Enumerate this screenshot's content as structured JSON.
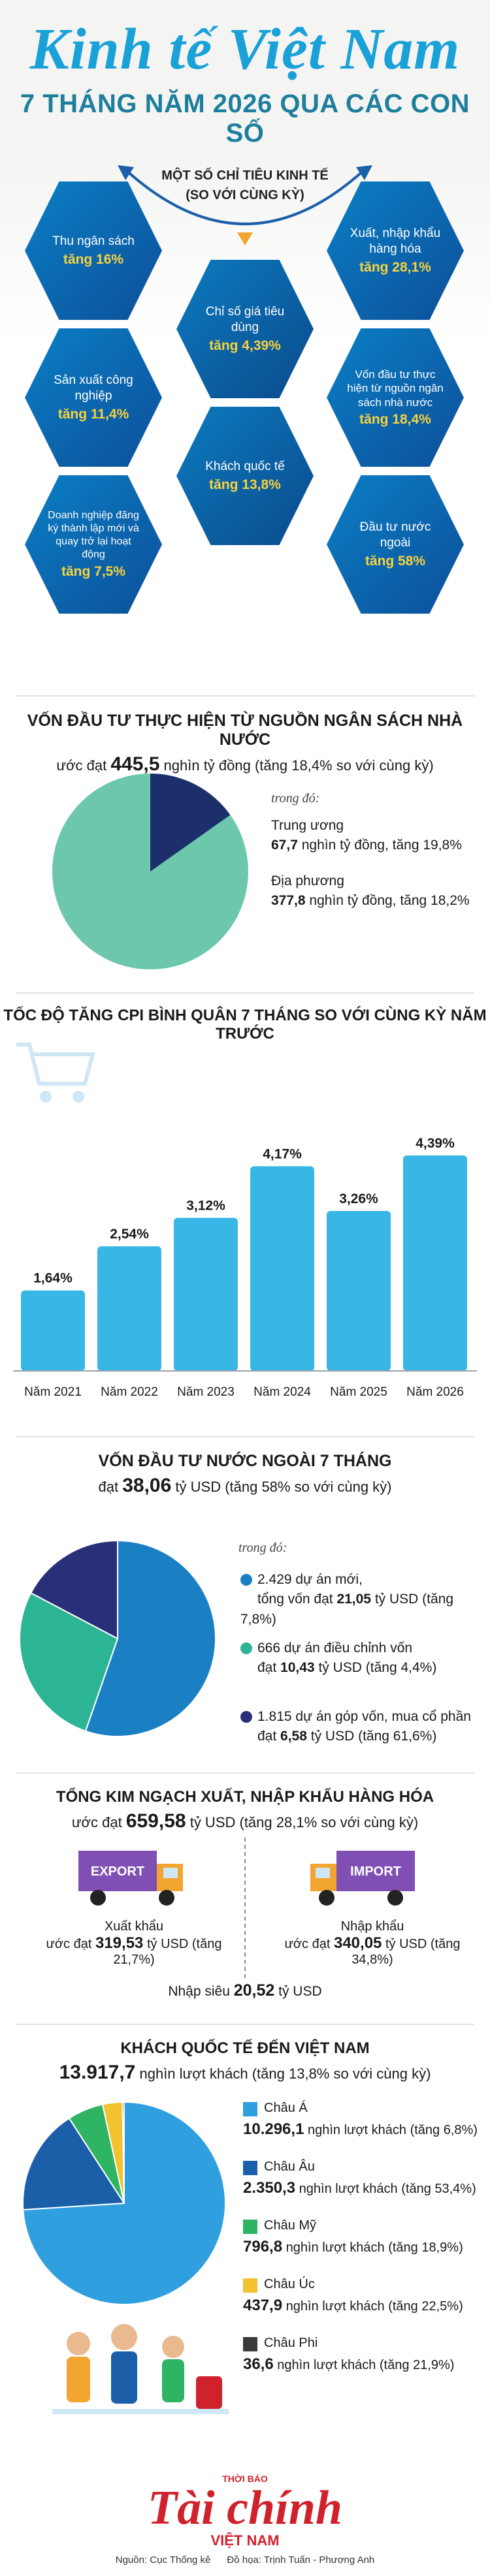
{
  "header": {
    "title": "Kinh tế Việt Nam",
    "subtitle": "7 THÁNG NĂM 2026 QUA CÁC CON SỐ"
  },
  "indicators": {
    "heading_line1": "MỘT SỐ CHỈ TIÊU KINH TẾ",
    "heading_line2": "(SO VỚI CÙNG KỲ)",
    "items": [
      {
        "label": "Thu ngân sách",
        "value": "tăng 16%"
      },
      {
        "label": "Xuất, nhập khẩu hàng hóa",
        "value": "tăng 28,1%"
      },
      {
        "label": "Chỉ số giá tiêu dùng",
        "value": "tăng 4,39%"
      },
      {
        "label": "Sản xuất công nghiệp",
        "value": "tăng 11,4%"
      },
      {
        "label": "Vốn đầu tư thực hiện từ nguồn ngân sách nhà nước",
        "value": "tăng 18,4%"
      },
      {
        "label": "Khách quốc tế",
        "value": "tăng 13,8%"
      },
      {
        "label": "Doanh nghiệp đăng ký thành lập mới và quay trở lại hoạt động",
        "value": "tăng 7,5%"
      },
      {
        "label": "Đầu tư nước ngoài",
        "value": "tăng 58%"
      }
    ]
  },
  "budget": {
    "title": "VỐN ĐẦU TƯ THỰC HIỆN TỪ NGUỒN NGÂN SÁCH NHÀ NƯỚC",
    "sub_prefix": "ước đạt",
    "sub_value": "445,5",
    "sub_suffix": "nghìn tỷ đồng (tăng 18,4% so với cùng kỳ)",
    "trong_do": "trong đó:",
    "central_label": "Trung ương",
    "central_value": "67,7",
    "central_suffix": "nghìn tỷ đồng, tăng 19,8%",
    "local_label": "Địa phương",
    "local_value": "377,8",
    "local_suffix": "nghìn tỷ đồng, tăng 18,2%",
    "colors": {
      "central": "#1c2f6b",
      "local": "#6cc7ad"
    }
  },
  "chart_data": {
    "type": "bar",
    "title": "TỐC ĐỘ TĂNG CPI BÌNH QUÂN 7 THÁNG SO VỚI CÙNG KỲ NĂM TRƯỚC",
    "categories": [
      "Năm 2021",
      "Năm 2022",
      "Năm 2023",
      "Năm 2024",
      "Năm 2025",
      "Năm 2026"
    ],
    "values": [
      1.64,
      2.54,
      3.12,
      4.17,
      3.26,
      4.39
    ],
    "value_labels": [
      "1,64%",
      "2,54%",
      "3,12%",
      "4,17%",
      "3,26%",
      "4,39%"
    ],
    "ylim": [
      0,
      4.39
    ],
    "grid": false,
    "colors": {
      "bars": "#38b6e6"
    }
  },
  "fdi": {
    "title": "VỐN ĐẦU TƯ NƯỚC NGOÀI 7 THÁNG",
    "sub_prefix": "đạt",
    "sub_value": "38,06",
    "sub_suffix": "tỷ USD (tăng 58% so với cùng kỳ)",
    "trong_do": "trong đó:",
    "item1_line1": "2.429 dự án mới,",
    "item1_line2_prefix": "tổng vốn đạt",
    "item1_value": "21,05",
    "item1_suffix": "tỷ USD (tăng 7,8%)",
    "item2_line1": "666 dự án điều chỉnh vốn",
    "item2_line2_prefix": "đạt",
    "item2_value": "10,43",
    "item2_suffix": "tỷ USD (tăng 4,4%)",
    "item3_line1": "1.815 dự án góp vốn, mua cổ phần",
    "item3_line2_prefix": "đạt",
    "item3_value": "6,58",
    "item3_suffix": "tỷ USD (tăng 61,6%)",
    "shares": [
      21.05,
      10.43,
      6.58
    ],
    "colors": [
      "#1b7fc4",
      "#2cb594",
      "#2a2f7a"
    ]
  },
  "trade": {
    "title": "TỔNG KIM NGẠCH XUẤT, NHẬP KHẨU HÀNG HÓA",
    "sub_prefix": "ước đạt",
    "sub_value": "659,58",
    "sub_suffix": "tỷ USD (tăng 28,1% so với cùng kỳ)",
    "export_tag": "EXPORT",
    "import_tag": "IMPORT",
    "export_label": "Xuất khẩu",
    "export_prefix": "ước đạt",
    "export_value": "319,53",
    "export_suffix": "tỷ USD (tăng 21,7%)",
    "import_label": "Nhập khẩu",
    "import_prefix": "ước đạt",
    "import_value": "340,05",
    "import_suffix": "tỷ USD (tăng 34,8%)",
    "deficit_prefix": "Nhập siêu",
    "deficit_value": "20,52",
    "deficit_suffix": "tỷ USD"
  },
  "tourists": {
    "title": "KHÁCH QUỐC TẾ ĐẾN VIỆT NAM",
    "sub_value": "13.917,7",
    "sub_suffix": "nghìn lượt khách (tăng 13,8% so với cùng kỳ)",
    "regions": [
      {
        "name": "Châu Á",
        "value": "10.296,1",
        "suffix": "nghìn lượt khách (tăng 6,8%)",
        "share": 10296.1,
        "color": "#2f9fe0"
      },
      {
        "name": "Châu Âu",
        "value": "2.350,3",
        "suffix": "nghìn lượt khách (tăng 53,4%)",
        "share": 2350.3,
        "color": "#1b5fa8"
      },
      {
        "name": "Châu Mỹ",
        "value": "796,8",
        "suffix": "nghìn lượt khách (tăng 18,9%)",
        "share": 796.8,
        "color": "#2fb463"
      },
      {
        "name": "Châu Úc",
        "value": "437,9",
        "suffix": "nghìn lượt khách (tăng 22,5%)",
        "share": 437.9,
        "color": "#f2c230"
      },
      {
        "name": "Châu Phi",
        "value": "36,6",
        "suffix": "nghìn lượt khách (tăng 21,9%)",
        "share": 36.6,
        "color": "#3a3a3a"
      }
    ]
  },
  "footer": {
    "brand_small": "THỜI BÁO",
    "brand": "Tài chính",
    "brand_sub": "VIỆT NAM",
    "source": "Nguồn: Cục Thống kê",
    "credit": "Đồ họa: Trịnh Tuấn - Phương Anh"
  }
}
